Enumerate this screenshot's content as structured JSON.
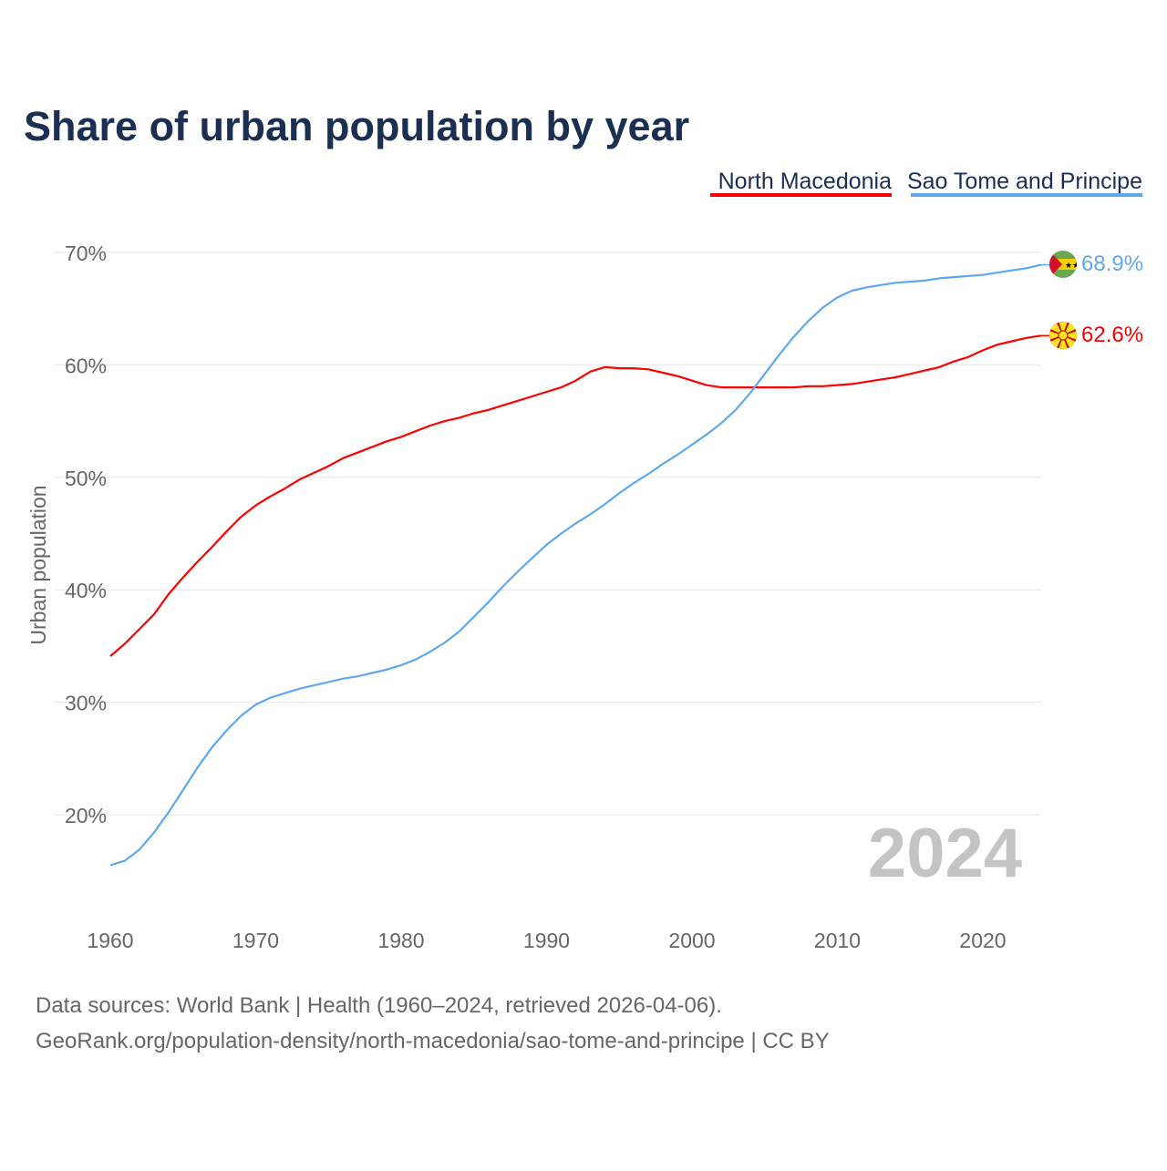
{
  "chart_data": {
    "type": "line",
    "title": "Share of urban population by year",
    "ylabel": "Urban population",
    "xlabel": "",
    "ylim": [
      12,
      72
    ],
    "xlim": [
      1960,
      2024
    ],
    "grid": true,
    "legend_placement": "top-right",
    "y_ticks": [
      20,
      30,
      40,
      50,
      60,
      70
    ],
    "y_tick_labels": [
      "20%",
      "30%",
      "40%",
      "50%",
      "60%",
      "70%"
    ],
    "x_ticks": [
      1960,
      1970,
      1980,
      1990,
      2000,
      2010,
      2020
    ],
    "x_tick_labels": [
      "1960",
      "1970",
      "1980",
      "1990",
      "2000",
      "2010",
      "2020"
    ],
    "year_watermark": "2024",
    "x_start": 1960,
    "series": [
      {
        "name": "North Macedonia",
        "color": "#ff0000",
        "flag": "north-macedonia-flag",
        "end_label": "62.6%",
        "values": [
          34.1,
          35.2,
          36.5,
          37.8,
          39.6,
          41.1,
          42.5,
          43.8,
          45.2,
          46.5,
          47.5,
          48.3,
          49.0,
          49.8,
          50.4,
          51.0,
          51.7,
          52.2,
          52.7,
          53.2,
          53.6,
          54.1,
          54.6,
          55.0,
          55.3,
          55.7,
          56.0,
          56.4,
          56.8,
          57.2,
          57.6,
          58.0,
          58.6,
          59.4,
          59.8,
          59.7,
          59.7,
          59.6,
          59.3,
          59.0,
          58.6,
          58.2,
          58.0,
          58.0,
          58.0,
          58.0,
          58.0,
          58.0,
          58.1,
          58.1,
          58.2,
          58.3,
          58.5,
          58.7,
          58.9,
          59.2,
          59.5,
          59.8,
          60.3,
          60.7,
          61.3,
          61.8,
          62.1,
          62.4,
          62.6
        ]
      },
      {
        "name": "Sao Tome and Principe",
        "color": "#5ea8ee",
        "flag": "sao-tome-and-principe-flag",
        "end_label": "68.9%",
        "values": [
          15.5,
          15.9,
          16.9,
          18.4,
          20.2,
          22.2,
          24.2,
          26.0,
          27.5,
          28.8,
          29.8,
          30.4,
          30.8,
          31.2,
          31.5,
          31.8,
          32.1,
          32.3,
          32.6,
          32.9,
          33.3,
          33.8,
          34.5,
          35.3,
          36.3,
          37.6,
          38.9,
          40.3,
          41.6,
          42.8,
          44.0,
          45.0,
          45.9,
          46.7,
          47.6,
          48.6,
          49.5,
          50.3,
          51.2,
          52.0,
          52.9,
          53.8,
          54.8,
          56.0,
          57.5,
          59.2,
          60.9,
          62.5,
          63.9,
          65.1,
          66.0,
          66.6,
          66.9,
          67.1,
          67.3,
          67.4,
          67.5,
          67.7,
          67.8,
          67.9,
          68.0,
          68.2,
          68.4,
          68.6,
          68.9
        ]
      }
    ]
  },
  "footer": {
    "line1": "Data sources: World Bank | Health (1960–2024, retrieved 2026-04-06).",
    "line2": "GeoRank.org/population-density/north-macedonia/sao-tome-and-principe | CC BY"
  }
}
